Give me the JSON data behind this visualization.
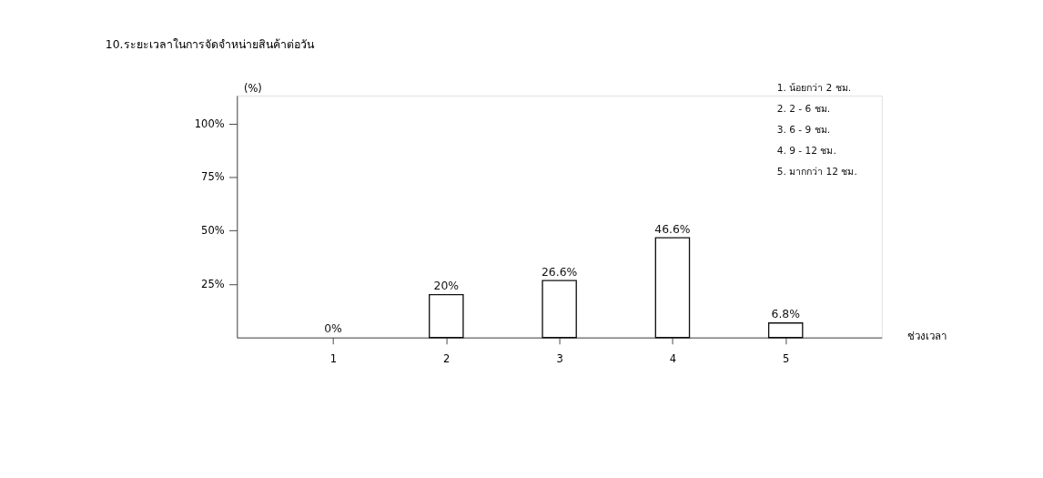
{
  "chart_data": {
    "type": "bar",
    "title": "10.ระยะเวลาในการจัดจำหน่ายสินค้าต่อวัน",
    "xlabel": "ช่วงเวลา",
    "ylabel": "(%)",
    "categories": [
      "1",
      "2",
      "3",
      "4",
      "5"
    ],
    "values": [
      0,
      20,
      26.6,
      46.6,
      6.8
    ],
    "value_labels": [
      "0%",
      "20%",
      "26.6%",
      "46.6%",
      "6.8%"
    ],
    "color": "#ffffff",
    "ylim": [
      0,
      113
    ],
    "yticks": [
      {
        "value": 25,
        "label": "25%"
      },
      {
        "value": 50,
        "label": "50%"
      },
      {
        "value": 75,
        "label": "75%"
      },
      {
        "value": 100,
        "label": "100%"
      }
    ],
    "grid": false,
    "annotations": [
      "1. น้อยกว่า 2 ชม.",
      "2. 2 - 6 ชม.",
      "3. 6 - 9 ชม.",
      "4. 9 - 12 ชม.",
      "5. มากกว่า 12 ชม."
    ]
  }
}
